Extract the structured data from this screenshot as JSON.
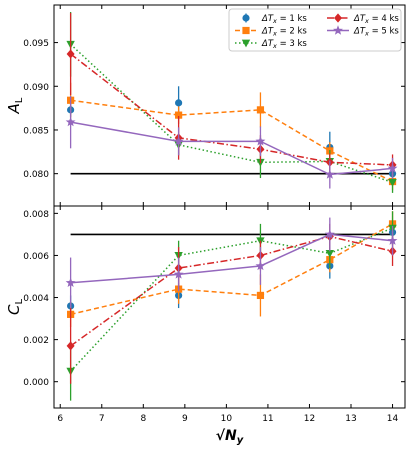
{
  "chart_data": [
    {
      "type": "line",
      "panel": "top",
      "ylabel": "A_L",
      "xlabel": "",
      "xlim": [
        5.85,
        14.3
      ],
      "ylim": [
        0.0763,
        0.0993
      ],
      "xticks": [
        6,
        7,
        8,
        9,
        10,
        11,
        12,
        13,
        14
      ],
      "yticks": [
        0.08,
        0.085,
        0.09,
        0.095
      ],
      "ytick_labels": [
        "0.080",
        "0.085",
        "0.090",
        "0.095"
      ],
      "reference_line": {
        "y": 0.08,
        "x_from": 6.25,
        "x_to": 14.0,
        "color": "#000000"
      },
      "legend": {
        "placement": "top-right",
        "columns": 2
      },
      "x": [
        6.25,
        8.85,
        10.82,
        12.49,
        14.0
      ],
      "series": [
        {
          "name": "ΔT_x = 1 ks",
          "color": "#1f77b4",
          "style": "none",
          "marker": "circle",
          "values": [
            0.0873,
            0.0881,
            null,
            0.083,
            0.08
          ],
          "errors": [
            0.0008,
            0.0019,
            null,
            0.0018,
            0.0007
          ]
        },
        {
          "name": "ΔT_x = 2 ks",
          "color": "#ff7f0e",
          "style": "dashed",
          "marker": "square",
          "values": [
            0.0884,
            0.0867,
            0.0873,
            0.0826,
            0.0791
          ],
          "errors": [
            0.002,
            0.001,
            0.002,
            0.001,
            0.001
          ]
        },
        {
          "name": "ΔT_x = 3 ks",
          "color": "#2ca02c",
          "style": "dotted",
          "marker": "triangle-down",
          "values": [
            0.0948,
            0.0833,
            0.0813,
            0.0814,
            0.079
          ],
          "errors": [
            0.0037,
            0.0012,
            0.0018,
            0.0013,
            0.0012
          ]
        },
        {
          "name": "ΔT_x = 4 ks",
          "color": "#d62728",
          "style": "dashdot",
          "marker": "diamond",
          "values": [
            0.0937,
            0.0841,
            0.0828,
            0.0813,
            0.081
          ],
          "errors": [
            0.0047,
            0.0025,
            0.0016,
            0.001,
            0.0012
          ]
        },
        {
          "name": "ΔT_x = 5 ks",
          "color": "#9467bd",
          "style": "solid",
          "marker": "star",
          "values": [
            0.0859,
            0.0837,
            0.0837,
            0.0799,
            0.0806
          ],
          "errors": [
            0.003,
            0.0016,
            0.0017,
            0.0016,
            0.0012
          ]
        }
      ]
    },
    {
      "type": "line",
      "panel": "bottom",
      "ylabel": "C_L",
      "xlabel": "√N_y",
      "xlim": [
        5.85,
        14.3
      ],
      "ylim": [
        -0.00125,
        0.00835
      ],
      "xticks": [
        6,
        7,
        8,
        9,
        10,
        11,
        12,
        13,
        14
      ],
      "yticks": [
        0.0,
        0.002,
        0.004,
        0.006,
        0.008
      ],
      "ytick_labels": [
        "0.000",
        "0.002",
        "0.004",
        "0.006",
        "0.008"
      ],
      "reference_line": {
        "y": 0.007,
        "x_from": 6.25,
        "x_to": 14.0,
        "color": "#000000"
      },
      "x": [
        6.25,
        8.85,
        10.82,
        12.49,
        14.0
      ],
      "series": [
        {
          "name": "ΔT_x = 1 ks",
          "color": "#1f77b4",
          "style": "none",
          "marker": "circle",
          "values": [
            0.0036,
            0.0041,
            null,
            0.0055,
            0.0071
          ],
          "errors": [
            0.0005,
            0.0006,
            null,
            0.0006,
            0.0004
          ]
        },
        {
          "name": "ΔT_x = 2 ks",
          "color": "#ff7f0e",
          "style": "dashed",
          "marker": "square",
          "values": [
            0.0032,
            0.0044,
            0.0041,
            0.0058,
            0.0075
          ],
          "errors": [
            0.0006,
            0.0007,
            0.001,
            0.0006,
            0.0006
          ]
        },
        {
          "name": "ΔT_x = 3 ks",
          "color": "#2ca02c",
          "style": "dotted",
          "marker": "triangle-down",
          "values": [
            0.0005,
            0.006,
            0.0067,
            0.0061,
            0.0073
          ],
          "errors": [
            0.0014,
            0.0007,
            0.0008,
            0.0007,
            0.0008
          ]
        },
        {
          "name": "ΔT_x = 4 ks",
          "color": "#d62728",
          "style": "dashdot",
          "marker": "diamond",
          "values": [
            0.0017,
            0.0054,
            0.006,
            0.0069,
            0.0062
          ],
          "errors": [
            0.0018,
            0.001,
            0.0007,
            0.0006,
            0.0007
          ]
        },
        {
          "name": "ΔT_x = 5 ks",
          "color": "#9467bd",
          "style": "solid",
          "marker": "star",
          "values": [
            0.0047,
            0.0051,
            0.0055,
            0.007,
            0.0067
          ],
          "errors": [
            0.0012,
            0.0008,
            0.0009,
            0.0008,
            0.0007
          ]
        }
      ]
    }
  ]
}
